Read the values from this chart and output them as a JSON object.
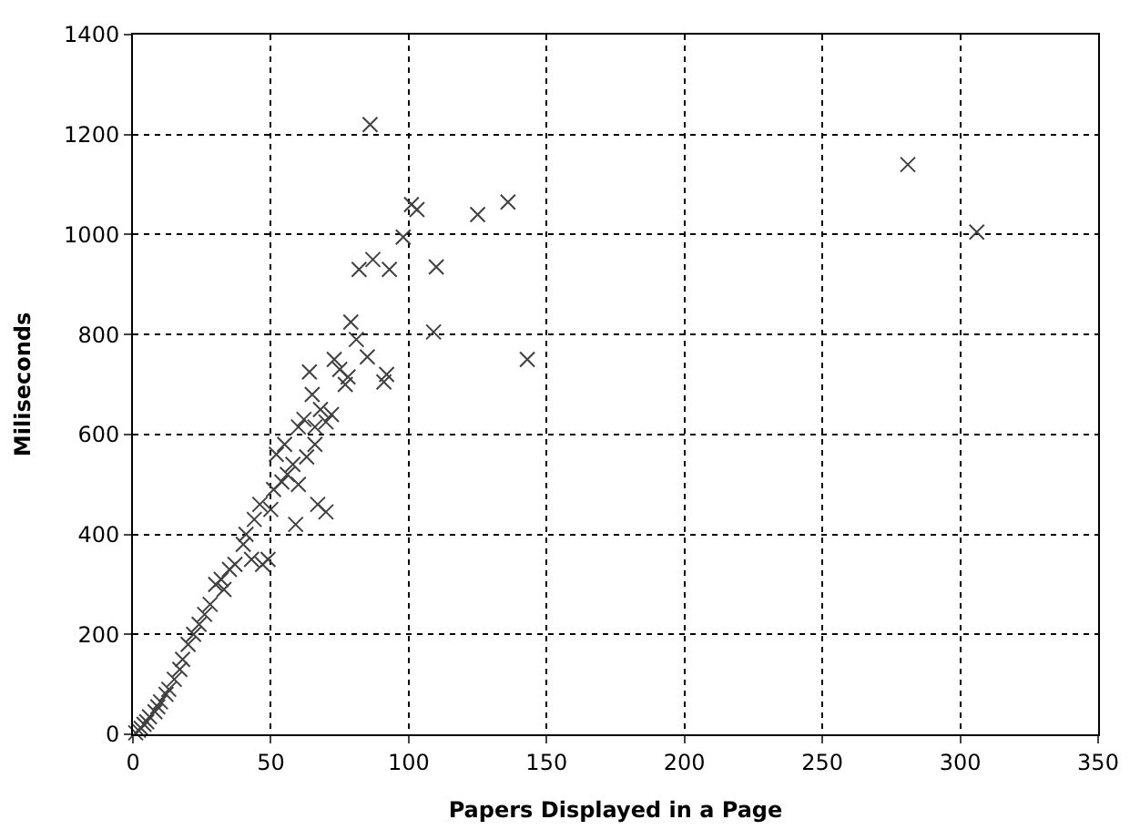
{
  "chart_data": {
    "type": "scatter",
    "xlabel": "Papers Displayed in a Page",
    "ylabel": "Miliseconds",
    "x": [
      281,
      306,
      86,
      101,
      103,
      125,
      136,
      98,
      93,
      87,
      82,
      110,
      109,
      143,
      79,
      81,
      85,
      91,
      92,
      77,
      78,
      73,
      75,
      68,
      70,
      64,
      65,
      60,
      62,
      66,
      72,
      66,
      63,
      55,
      52,
      56,
      58,
      54,
      51,
      60,
      59,
      67,
      70,
      50,
      46,
      44,
      47,
      49,
      43,
      41,
      40,
      37,
      35,
      32,
      30,
      33,
      28,
      26,
      24,
      22,
      20,
      18,
      17,
      15,
      13,
      12,
      10,
      9,
      8,
      6,
      5,
      4,
      3,
      2,
      1
    ],
    "series": [
      {
        "color": "#404040",
        "values": [
          1140,
          1005,
          1220,
          1060,
          1050,
          1040,
          1065,
          995,
          930,
          950,
          930,
          935,
          805,
          750,
          825,
          790,
          755,
          705,
          720,
          700,
          715,
          750,
          730,
          650,
          625,
          725,
          680,
          615,
          630,
          615,
          640,
          580,
          555,
          580,
          560,
          520,
          540,
          505,
          490,
          500,
          420,
          460,
          445,
          450,
          460,
          430,
          340,
          350,
          350,
          400,
          380,
          340,
          330,
          310,
          300,
          290,
          260,
          240,
          220,
          200,
          180,
          150,
          130,
          110,
          90,
          80,
          65,
          55,
          45,
          35,
          25,
          20,
          12,
          8,
          3
        ]
      }
    ],
    "xlim": [
      0,
      350
    ],
    "xticks": [
      0,
      50,
      100,
      150,
      200,
      250,
      300,
      350
    ],
    "ylim": [
      0,
      1400
    ],
    "yticks": [
      0,
      200,
      400,
      600,
      800,
      1000,
      1200,
      1400
    ],
    "grid": true,
    "marker": "cross"
  }
}
